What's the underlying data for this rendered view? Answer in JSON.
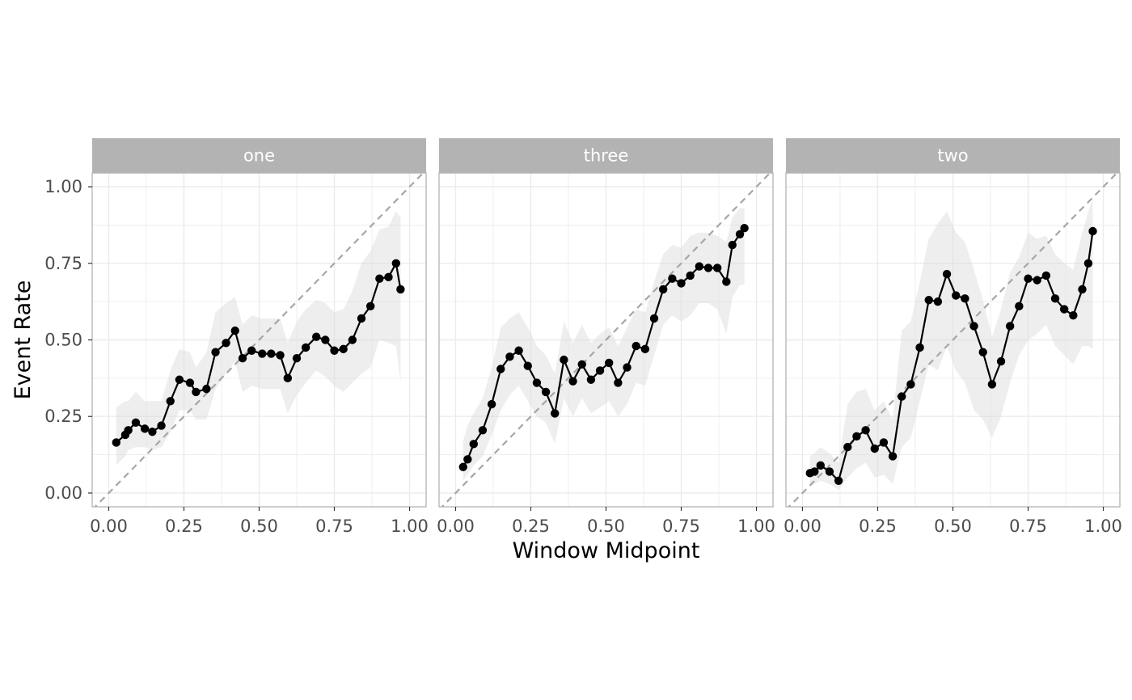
{
  "chart_data": {
    "type": "line",
    "facets": [
      "one",
      "three",
      "two"
    ],
    "xlabel": "Window Midpoint",
    "ylabel": "Event Rate",
    "xlim": [
      0,
      1
    ],
    "ylim": [
      0,
      1
    ],
    "x_ticks": [
      "0.00",
      "0.25",
      "0.50",
      "0.75",
      "1.00"
    ],
    "y_ticks": [
      "0.00",
      "0.25",
      "0.50",
      "0.75",
      "1.00"
    ],
    "reference_line": "y = x (dashed)",
    "ribbon": "confidence band (light grey)",
    "grid": true,
    "colors": {
      "strip": "#b3b3b3",
      "grid": "#ebebeb",
      "ribbon": "#d9d9d9",
      "line": "#000000",
      "reference": "#a6a6a6",
      "panel_border": "#b3b3b3"
    },
    "panels": [
      {
        "name": "one",
        "x": [
          0.025,
          0.055,
          0.065,
          0.09,
          0.12,
          0.145,
          0.175,
          0.205,
          0.235,
          0.27,
          0.29,
          0.325,
          0.355,
          0.39,
          0.42,
          0.445,
          0.475,
          0.51,
          0.54,
          0.57,
          0.595,
          0.625,
          0.655,
          0.69,
          0.72,
          0.75,
          0.78,
          0.81,
          0.84,
          0.87,
          0.9,
          0.93,
          0.955,
          0.97
        ],
        "y": [
          0.165,
          0.19,
          0.205,
          0.23,
          0.21,
          0.2,
          0.22,
          0.3,
          0.37,
          0.36,
          0.33,
          0.34,
          0.46,
          0.49,
          0.53,
          0.44,
          0.465,
          0.455,
          0.455,
          0.45,
          0.375,
          0.44,
          0.475,
          0.51,
          0.5,
          0.465,
          0.47,
          0.5,
          0.57,
          0.61,
          0.7,
          0.705,
          0.75,
          0.665
        ],
        "lower": [
          0.09,
          0.12,
          0.14,
          0.15,
          0.15,
          0.14,
          0.15,
          0.2,
          0.27,
          0.27,
          0.24,
          0.24,
          0.34,
          0.39,
          0.43,
          0.33,
          0.35,
          0.34,
          0.34,
          0.34,
          0.26,
          0.32,
          0.36,
          0.4,
          0.38,
          0.35,
          0.33,
          0.36,
          0.39,
          0.41,
          0.5,
          0.49,
          0.48,
          0.36
        ],
        "upper": [
          0.28,
          0.3,
          0.3,
          0.33,
          0.3,
          0.3,
          0.3,
          0.4,
          0.47,
          0.46,
          0.41,
          0.46,
          0.59,
          0.62,
          0.64,
          0.55,
          0.58,
          0.57,
          0.57,
          0.57,
          0.49,
          0.56,
          0.6,
          0.63,
          0.62,
          0.59,
          0.6,
          0.66,
          0.75,
          0.79,
          0.86,
          0.87,
          0.92,
          0.9
        ]
      },
      {
        "name": "three",
        "x": [
          0.025,
          0.04,
          0.06,
          0.09,
          0.12,
          0.15,
          0.18,
          0.21,
          0.24,
          0.27,
          0.3,
          0.33,
          0.36,
          0.39,
          0.42,
          0.45,
          0.48,
          0.51,
          0.54,
          0.57,
          0.6,
          0.63,
          0.66,
          0.69,
          0.72,
          0.75,
          0.78,
          0.81,
          0.84,
          0.87,
          0.9,
          0.92,
          0.945,
          0.96
        ],
        "y": [
          0.085,
          0.11,
          0.16,
          0.205,
          0.29,
          0.405,
          0.445,
          0.465,
          0.415,
          0.36,
          0.33,
          0.26,
          0.435,
          0.365,
          0.42,
          0.37,
          0.4,
          0.425,
          0.36,
          0.41,
          0.48,
          0.47,
          0.57,
          0.665,
          0.7,
          0.685,
          0.71,
          0.74,
          0.735,
          0.735,
          0.69,
          0.81,
          0.845,
          0.865
        ],
        "lower": [
          0.04,
          0.06,
          0.09,
          0.12,
          0.19,
          0.27,
          0.32,
          0.35,
          0.3,
          0.25,
          0.23,
          0.16,
          0.31,
          0.25,
          0.31,
          0.26,
          0.28,
          0.3,
          0.25,
          0.29,
          0.36,
          0.35,
          0.45,
          0.55,
          0.58,
          0.56,
          0.58,
          0.62,
          0.62,
          0.6,
          0.52,
          0.64,
          0.68,
          0.68
        ],
        "upper": [
          0.17,
          0.22,
          0.26,
          0.31,
          0.41,
          0.54,
          0.57,
          0.59,
          0.54,
          0.48,
          0.45,
          0.39,
          0.56,
          0.49,
          0.55,
          0.49,
          0.52,
          0.54,
          0.48,
          0.54,
          0.6,
          0.59,
          0.69,
          0.78,
          0.81,
          0.8,
          0.84,
          0.85,
          0.85,
          0.84,
          0.82,
          0.9,
          0.93,
          0.93
        ]
      },
      {
        "name": "two",
        "x": [
          0.025,
          0.04,
          0.06,
          0.09,
          0.12,
          0.15,
          0.18,
          0.21,
          0.24,
          0.27,
          0.3,
          0.33,
          0.36,
          0.39,
          0.42,
          0.45,
          0.48,
          0.51,
          0.54,
          0.57,
          0.6,
          0.63,
          0.66,
          0.69,
          0.72,
          0.75,
          0.78,
          0.81,
          0.84,
          0.87,
          0.9,
          0.93,
          0.95,
          0.965
        ],
        "y": [
          0.065,
          0.07,
          0.09,
          0.07,
          0.04,
          0.15,
          0.185,
          0.205,
          0.145,
          0.165,
          0.12,
          0.315,
          0.355,
          0.475,
          0.63,
          0.625,
          0.715,
          0.645,
          0.635,
          0.545,
          0.46,
          0.355,
          0.43,
          0.545,
          0.61,
          0.7,
          0.695,
          0.71,
          0.635,
          0.6,
          0.58,
          0.665,
          0.75,
          0.855
        ],
        "lower": [
          0.02,
          0.03,
          0.04,
          0.03,
          0.01,
          0.05,
          0.08,
          0.1,
          0.05,
          0.06,
          0.03,
          0.15,
          0.18,
          0.3,
          0.42,
          0.4,
          0.48,
          0.4,
          0.36,
          0.27,
          0.24,
          0.18,
          0.25,
          0.36,
          0.45,
          0.5,
          0.52,
          0.55,
          0.48,
          0.45,
          0.42,
          0.48,
          0.48,
          0.47
        ],
        "upper": [
          0.12,
          0.13,
          0.15,
          0.13,
          0.1,
          0.29,
          0.33,
          0.34,
          0.27,
          0.3,
          0.24,
          0.53,
          0.56,
          0.69,
          0.83,
          0.88,
          0.92,
          0.85,
          0.82,
          0.73,
          0.63,
          0.51,
          0.6,
          0.72,
          0.77,
          0.85,
          0.83,
          0.84,
          0.78,
          0.75,
          0.73,
          0.85,
          0.92,
          0.96
        ]
      }
    ]
  }
}
